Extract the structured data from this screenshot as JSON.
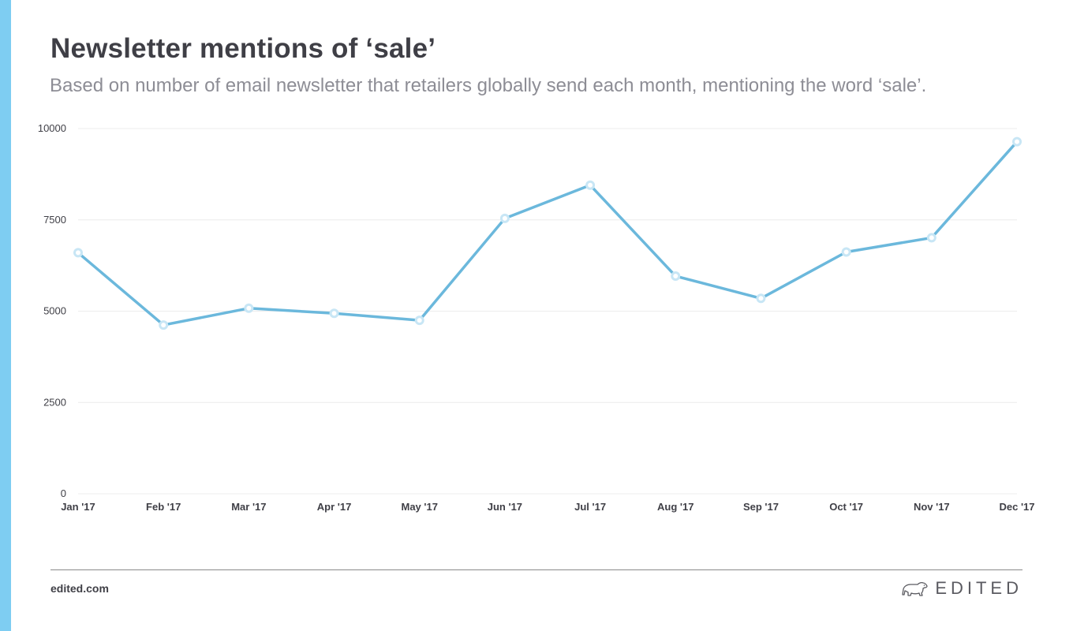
{
  "header": {
    "title": "Newsletter mentions of ‘sale’",
    "subtitle": "Based on number of email newsletter that retailers globally send each month, mentioning the word ‘sale’."
  },
  "footer": {
    "site": "edited.com",
    "logo_text": "EDITED",
    "logo_icon": "polar-bear-icon"
  },
  "colors": {
    "accent_bar": "#7ecdf2",
    "line": "#6bb8dc",
    "marker_stroke": "#c8e6f5",
    "grid": "#ececec"
  },
  "chart_data": {
    "type": "line",
    "title": "Newsletter mentions of ‘sale’",
    "subtitle": "Based on number of email newsletter that retailers globally send each month, mentioning the word ‘sale’.",
    "categories": [
      "Jan '17",
      "Feb '17",
      "Mar '17",
      "Apr '17",
      "May '17",
      "Jun '17",
      "Jul '17",
      "Aug '17",
      "Sep '17",
      "Oct '17",
      "Nov '17",
      "Dec '17"
    ],
    "series": [
      {
        "values": [
          6600,
          4620,
          5080,
          4940,
          4750,
          7540,
          8450,
          5960,
          5350,
          6620,
          7010,
          9640
        ]
      }
    ],
    "yticks": [
      0,
      2500,
      5000,
      7500,
      10000
    ],
    "ylim": [
      0,
      10000
    ],
    "xlabel": "",
    "ylabel": "",
    "grid": true,
    "legend": "none"
  }
}
